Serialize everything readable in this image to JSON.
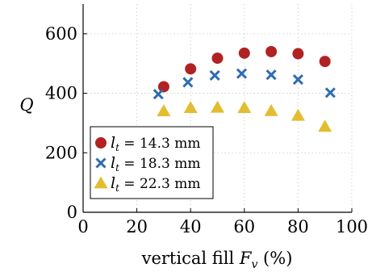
{
  "chart_data": {
    "type": "scatter",
    "xlabel": "vertical fill F_v (%)",
    "xlabel_parts": {
      "pre": "vertical fill ",
      "var": "F",
      "sub": "v",
      "post": " (%)"
    },
    "ylabel": "Q",
    "xlim": [
      0,
      100
    ],
    "ylim": [
      0,
      700
    ],
    "xticks": [
      0,
      20,
      40,
      60,
      80,
      100
    ],
    "yticks": [
      0,
      200,
      400,
      600
    ],
    "grid": true,
    "legend_position": "bottom-left",
    "series": [
      {
        "name": "l_t = 14.3 mm",
        "label": {
          "var": "l",
          "sub": "t",
          "rest": " = 14.3 mm"
        },
        "marker": "circle",
        "color": "#b22222",
        "x": [
          30,
          40,
          50,
          60,
          70,
          80,
          90
        ],
        "y": [
          422,
          482,
          518,
          535,
          540,
          533,
          507
        ]
      },
      {
        "name": "l_t = 18.3 mm",
        "label": {
          "var": "l",
          "sub": "t",
          "rest": " = 18.3 mm"
        },
        "marker": "cross",
        "color": "#2f6db3",
        "x": [
          28,
          39,
          49,
          59,
          70,
          80,
          92
        ],
        "y": [
          397,
          437,
          460,
          466,
          462,
          446,
          402
        ]
      },
      {
        "name": "l_t = 22.3 mm",
        "label": {
          "var": "l",
          "sub": "t",
          "rest": " = 22.3 mm"
        },
        "marker": "triangle",
        "color": "#e3bd2f",
        "x": [
          30,
          40,
          50,
          60,
          70,
          80,
          90
        ],
        "y": [
          340,
          351,
          352,
          351,
          341,
          325,
          288
        ]
      }
    ]
  }
}
